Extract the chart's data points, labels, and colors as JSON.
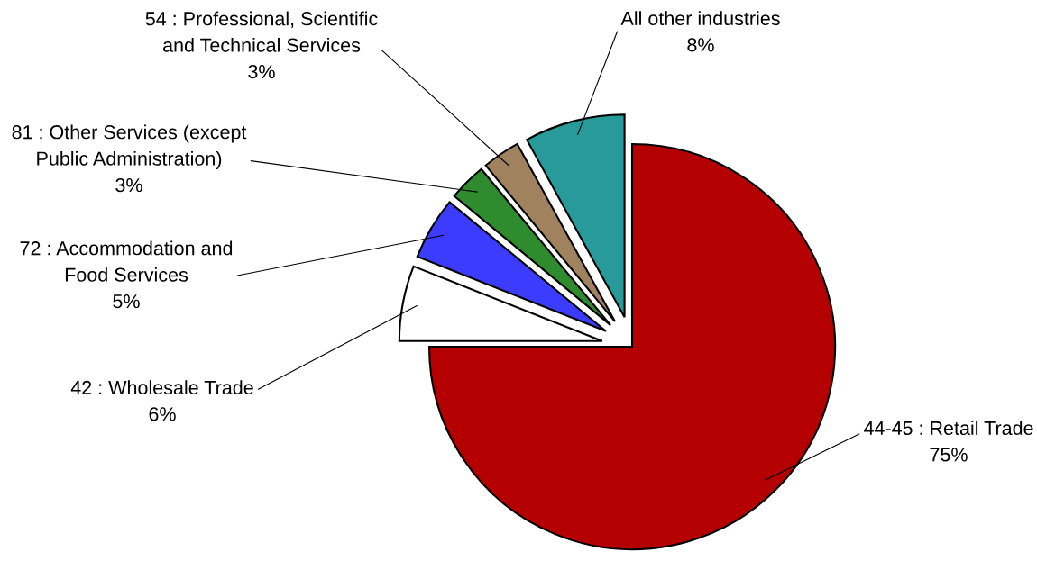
{
  "chart_data": {
    "type": "pie",
    "categories": [
      "44-45 : Retail Trade",
      "42 : Wholesale Trade",
      "72 : Accommodation and\nFood Services",
      "81 : Other Services (except\nPublic Administration)",
      "54 : Professional, Scientific\nand Technical Services",
      "All other industries"
    ],
    "values": [
      75,
      6,
      5,
      3,
      3,
      8
    ],
    "value_labels": [
      "75%",
      "6%",
      "5%",
      "3%",
      "3%",
      "8%"
    ],
    "colors": [
      "#b40000",
      "#ffffff",
      "#3c3cff",
      "#2e8b2e",
      "#a0825f",
      "#289a9a"
    ]
  }
}
